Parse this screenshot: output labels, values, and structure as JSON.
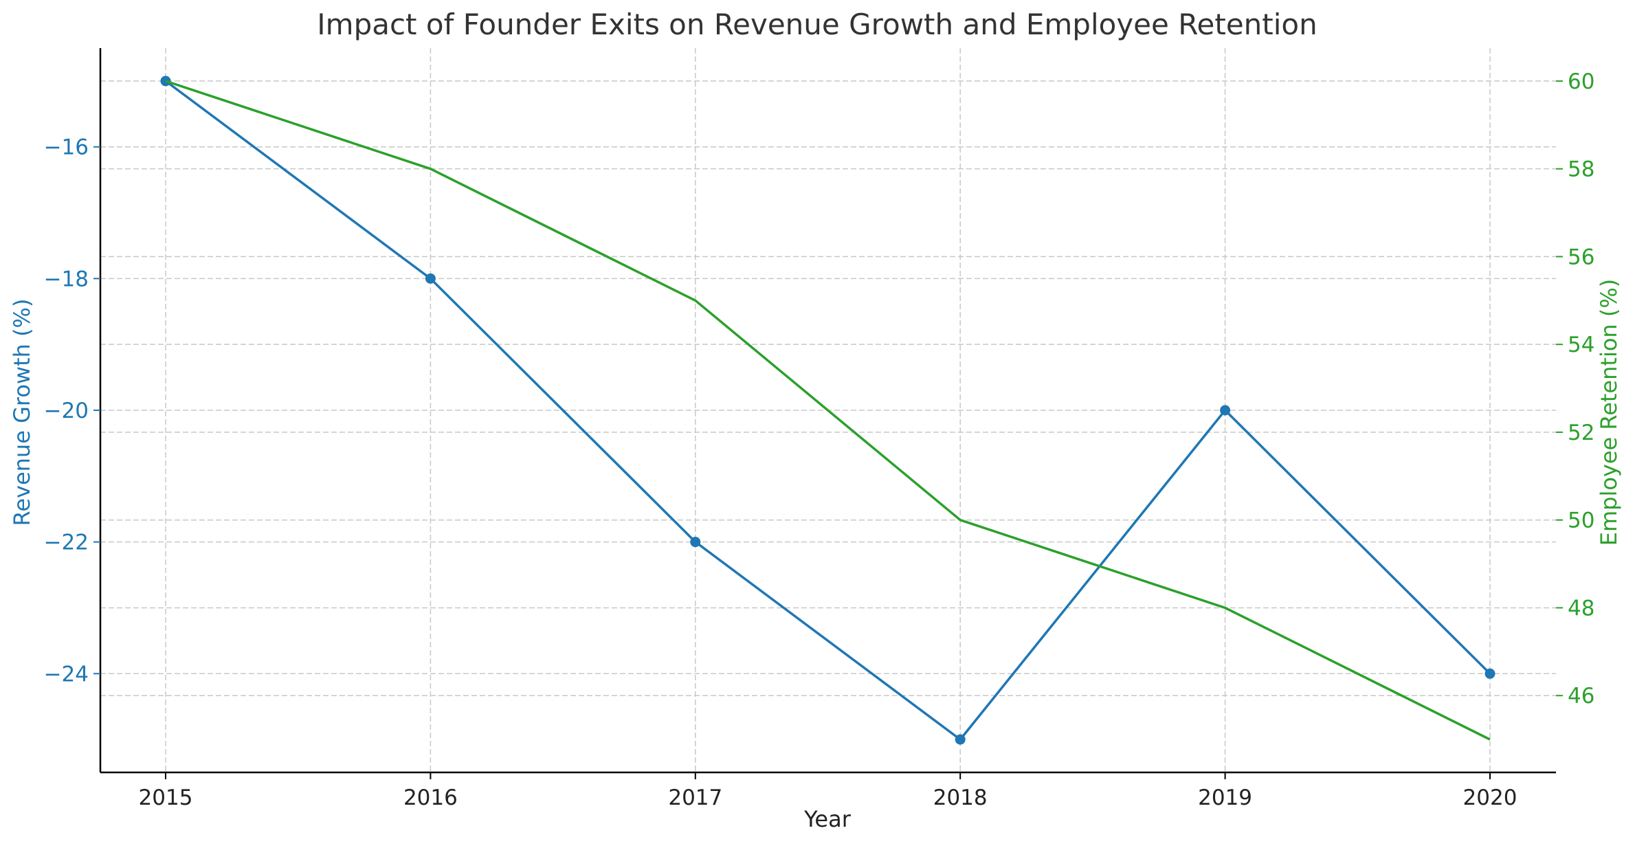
{
  "chart_data": {
    "type": "line",
    "title": "Impact of Founder Exits on Revenue Growth and Employee Retention",
    "xlabel": "Year",
    "x": [
      "2015",
      "2016",
      "2017",
      "2018",
      "2019",
      "2020"
    ],
    "series": [
      {
        "name": "Revenue Growth (%)",
        "axis": "left",
        "color": "#1f77b4",
        "markers": true,
        "values": [
          -15,
          -18,
          -22,
          -25,
          -20,
          -24
        ]
      },
      {
        "name": "Employee Retention (%)",
        "axis": "right",
        "color": "#2ca02c",
        "markers": false,
        "values": [
          60,
          58,
          55,
          50,
          48,
          45
        ]
      }
    ],
    "y_left": {
      "label": "Revenue Growth (%)",
      "color": "#1f77b4",
      "ticks": [
        -24,
        -22,
        -20,
        -18,
        -16
      ],
      "tick_labels": [
        "−24",
        "−22",
        "−20",
        "−18",
        "−16"
      ],
      "range": [
        -25.5,
        -14.5
      ]
    },
    "y_right": {
      "label": "Employee Retention (%)",
      "color": "#2ca02c",
      "ticks": [
        46,
        48,
        50,
        52,
        54,
        56,
        58,
        60
      ],
      "tick_labels": [
        "46",
        "48",
        "50",
        "52",
        "54",
        "56",
        "58",
        "60"
      ],
      "range": [
        44.25,
        60.75
      ]
    },
    "grid": true
  }
}
